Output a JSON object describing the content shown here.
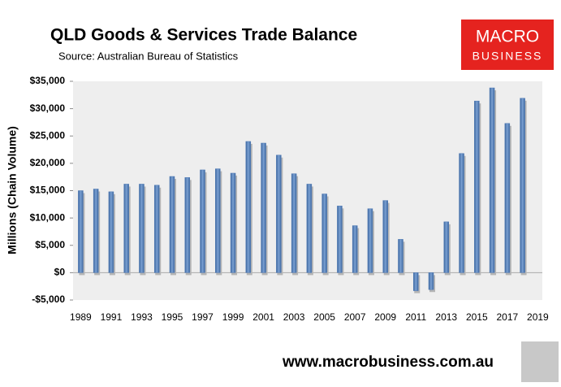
{
  "chart_data": {
    "type": "bar",
    "title": "QLD Goods & Services Trade Balance",
    "subtitle": "Source:  Australian Bureau of Statistics",
    "logo": [
      "MACRO",
      "BUSINESS"
    ],
    "footer": "www.macrobusiness.com.au",
    "y_label": "Millions (Chain Volume)",
    "x": [
      1989,
      1990,
      1991,
      1992,
      1993,
      1994,
      1995,
      1996,
      1997,
      1998,
      1999,
      2000,
      2001,
      2002,
      2003,
      2004,
      2005,
      2006,
      2007,
      2008,
      2009,
      2010,
      2011,
      2012,
      2013,
      2014,
      2015,
      2016,
      2017,
      2018
    ],
    "values": [
      15000,
      15300,
      14800,
      16200,
      16200,
      16000,
      17600,
      17400,
      18800,
      19000,
      18200,
      24000,
      23700,
      21500,
      18100,
      16200,
      14400,
      12200,
      8600,
      11700,
      13200,
      6100,
      -3300,
      -3100,
      9300,
      21800,
      31400,
      33800,
      27300,
      31900
    ],
    "color": "#4f7ab5",
    "xlim": [
      1988.5,
      2019.3
    ],
    "xticks": [
      1989,
      1991,
      1993,
      1995,
      1997,
      1999,
      2001,
      2003,
      2005,
      2007,
      2009,
      2011,
      2013,
      2015,
      2017,
      2019
    ],
    "ylim": [
      -5000,
      35000
    ],
    "yticks": [
      {
        "value": -5000,
        "label": "-$5,000"
      },
      {
        "value": 0,
        "label": "$0"
      },
      {
        "value": 5000,
        "label": "$5,000"
      },
      {
        "value": 10000,
        "label": "$10,000"
      },
      {
        "value": 15000,
        "label": "$15,000"
      },
      {
        "value": 20000,
        "label": "$20,000"
      },
      {
        "value": 25000,
        "label": "$25,000"
      },
      {
        "value": 30000,
        "label": "$30,000"
      },
      {
        "value": 35000,
        "label": "$35,000"
      }
    ]
  }
}
